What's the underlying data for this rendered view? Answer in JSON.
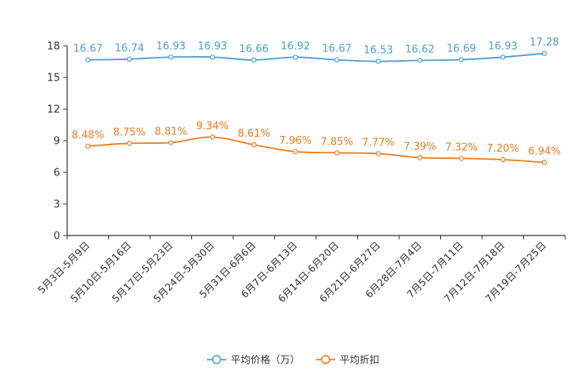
{
  "chart_data": {
    "type": "line",
    "title": "",
    "xlabel": "",
    "ylabel": "",
    "ylim": [
      0,
      18
    ],
    "yticks": [
      0,
      3,
      6,
      9,
      12,
      15,
      18
    ],
    "grid": false,
    "legend_position": "bottom-center",
    "categories": [
      "5月3日-5月9日",
      "5月10日-5月16日",
      "5月17日-5月23日",
      "5月24日-5月30日",
      "5月31日-6月6日",
      "6月7日-6月13日",
      "6月14日-6月20日",
      "6月21日-6月27日",
      "6月28日-7月4日",
      "7月5日-7月11日",
      "7月12日-7月18日",
      "7月19日-7月25日"
    ],
    "series": [
      {
        "name": "平均价格（万）",
        "color": "#4a9fd1",
        "values": [
          16.67,
          16.74,
          16.93,
          16.93,
          16.66,
          16.92,
          16.67,
          16.53,
          16.62,
          16.69,
          16.93,
          17.28
        ],
        "labels": [
          "16.67",
          "16.74",
          "16.93",
          "16.93",
          "16.66",
          "16.92",
          "16.67",
          "16.53",
          "16.62",
          "16.69",
          "16.93",
          "17.28"
        ]
      },
      {
        "name": "平均折扣",
        "color": "#f07c1e",
        "values": [
          8.48,
          8.75,
          8.81,
          9.34,
          8.61,
          7.96,
          7.85,
          7.77,
          7.39,
          7.32,
          7.2,
          6.94
        ],
        "labels": [
          "8.48%",
          "8.75%",
          "8.81%",
          "9.34%",
          "8.61%",
          "7.96%",
          "7.85%",
          "7.77%",
          "7.39%",
          "7.32%",
          "7.20%",
          "6.94%"
        ]
      }
    ]
  }
}
